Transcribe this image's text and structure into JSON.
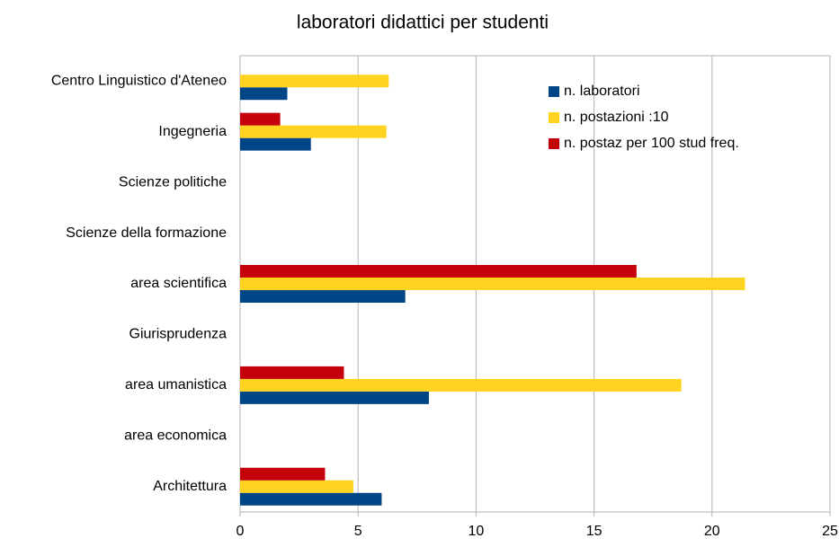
{
  "chart_data": {
    "type": "hbar",
    "title": "laboratori didattici per studenti",
    "categories": [
      "Centro Linguistico d'Ateneo",
      "Ingegneria",
      "Scienze politiche",
      "Scienze della formazione",
      "area scientifica",
      "Giurisprudenza",
      "area umanistica",
      "area economica",
      "Architettura"
    ],
    "series": [
      {
        "name": "n. laboratori",
        "color": "#004586",
        "values": [
          2,
          3,
          null,
          null,
          7,
          null,
          8,
          null,
          6
        ]
      },
      {
        "name": "n. postazioni :10",
        "color": "#ffd320",
        "values": [
          6.3,
          6.2,
          null,
          null,
          21.4,
          null,
          18.7,
          null,
          4.8
        ]
      },
      {
        "name": "n. postaz per 100 stud freq.",
        "color": "#c5000b",
        "values": [
          null,
          1.7,
          null,
          null,
          16.8,
          null,
          4.4,
          null,
          3.6
        ]
      }
    ],
    "xlim": [
      0,
      25
    ],
    "xticks": [
      0,
      5,
      10,
      15,
      20,
      25
    ],
    "grid": true,
    "legend": "upper right"
  }
}
